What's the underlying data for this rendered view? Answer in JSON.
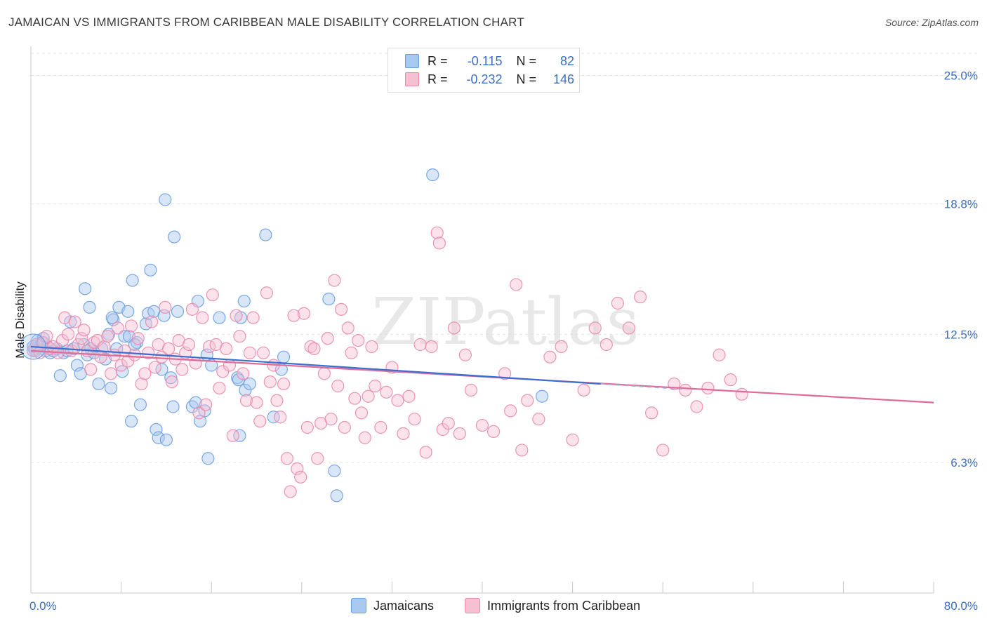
{
  "title": "JAMAICAN VS IMMIGRANTS FROM CARIBBEAN MALE DISABILITY CORRELATION CHART",
  "source": "Source: ZipAtlas.com",
  "watermark": "ZIPatlas",
  "legend": {
    "rows": [
      {
        "r_label": "R =",
        "r_value": "-0.115",
        "n_label": "N =",
        "n_value": "82",
        "color": "#a9c8f0",
        "border": "#6c9fe0"
      },
      {
        "r_label": "R =",
        "r_value": "-0.232",
        "n_label": "N =",
        "n_value": "146",
        "color": "#f7bfd2",
        "border": "#e88aad"
      }
    ]
  },
  "bottom_legend": [
    {
      "label": "Jamaicans",
      "color": "#a9c8f0",
      "border": "#6c9fe0"
    },
    {
      "label": "Immigrants from Caribbean",
      "color": "#f7bfd2",
      "border": "#e88aad"
    }
  ],
  "chart_data": {
    "type": "scatter",
    "xlabel": "",
    "ylabel": "Male Disability",
    "xlim": [
      0,
      80
    ],
    "ylim": [
      0,
      26
    ],
    "x_tick_labels": [
      "0.0%",
      "80.0%"
    ],
    "y_tick_labels": [
      "6.3%",
      "12.5%",
      "18.8%",
      "25.0%"
    ],
    "y_ticks": [
      6.3,
      12.5,
      18.8,
      25.0
    ],
    "grid": true,
    "series": [
      {
        "name": "Jamaicans",
        "color": "#6c9fe0",
        "fill": "#a9c8f0",
        "trend": {
          "x": [
            0,
            50.5
          ],
          "y": [
            11.9,
            10.1
          ]
        },
        "points": [
          [
            0.3,
            11.8
          ],
          [
            0.6,
            12.2
          ],
          [
            0.9,
            12.0
          ],
          [
            1.1,
            12.3
          ],
          [
            1.3,
            11.7
          ],
          [
            1.5,
            11.9
          ],
          [
            1.7,
            11.6
          ],
          [
            2.0,
            11.7
          ],
          [
            2.3,
            11.8
          ],
          [
            2.6,
            10.5
          ],
          [
            2.9,
            11.6
          ],
          [
            3.2,
            11.7
          ],
          [
            3.5,
            13.1
          ],
          [
            3.8,
            11.8
          ],
          [
            4.1,
            11.0
          ],
          [
            4.4,
            10.6
          ],
          [
            4.7,
            12.0
          ],
          [
            5.0,
            11.5
          ],
          [
            5.3,
            11.8
          ],
          [
            4.8,
            14.7
          ],
          [
            5.2,
            13.8
          ],
          [
            5.6,
            11.6
          ],
          [
            6.0,
            10.1
          ],
          [
            6.3,
            11.8
          ],
          [
            6.6,
            11.3
          ],
          [
            6.9,
            12.5
          ],
          [
            7.1,
            9.9
          ],
          [
            7.3,
            13.2
          ],
          [
            7.6,
            11.8
          ],
          [
            7.2,
            13.3
          ],
          [
            7.8,
            13.8
          ],
          [
            8.1,
            10.7
          ],
          [
            8.3,
            12.4
          ],
          [
            8.6,
            13.6
          ],
          [
            8.9,
            8.3
          ],
          [
            8.7,
            12.4
          ],
          [
            9.0,
            15.1
          ],
          [
            9.4,
            12.1
          ],
          [
            9.2,
            12.0
          ],
          [
            9.7,
            9.1
          ],
          [
            10.2,
            13.0
          ],
          [
            10.4,
            13.5
          ],
          [
            10.6,
            15.6
          ],
          [
            10.9,
            13.6
          ],
          [
            11.1,
            7.9
          ],
          [
            11.3,
            7.5
          ],
          [
            11.6,
            10.8
          ],
          [
            11.8,
            13.4
          ],
          [
            12.0,
            7.4
          ],
          [
            11.9,
            19.0
          ],
          [
            12.4,
            10.4
          ],
          [
            12.6,
            9.0
          ],
          [
            12.7,
            17.2
          ],
          [
            13.0,
            13.6
          ],
          [
            14.3,
            9.0
          ],
          [
            14.6,
            9.2
          ],
          [
            14.8,
            14.1
          ],
          [
            15.0,
            8.3
          ],
          [
            15.4,
            8.8
          ],
          [
            15.6,
            11.5
          ],
          [
            15.7,
            6.5
          ],
          [
            16.7,
            13.3
          ],
          [
            18.3,
            10.4
          ],
          [
            18.6,
            13.3
          ],
          [
            18.9,
            14.1
          ],
          [
            18.4,
            10.3
          ],
          [
            19.0,
            9.8
          ],
          [
            19.4,
            10.1
          ],
          [
            18.5,
            7.6
          ],
          [
            20.8,
            17.3
          ],
          [
            21.5,
            8.5
          ],
          [
            22.2,
            10.8
          ],
          [
            22.4,
            11.4
          ],
          [
            26.4,
            14.2
          ],
          [
            26.9,
            5.9
          ],
          [
            27.1,
            4.7
          ],
          [
            35.6,
            20.2
          ],
          [
            45.3,
            9.5
          ],
          [
            0.2,
            11.9
          ],
          [
            0.4,
            11.7
          ],
          [
            1.0,
            12.1
          ],
          [
            16.0,
            11.0
          ]
        ]
      },
      {
        "name": "Immigrants from Caribbean",
        "color": "#e88aad",
        "fill": "#f7bfd2",
        "trend": {
          "x": [
            0,
            80
          ],
          "y": [
            11.7,
            9.2
          ]
        },
        "points": [
          [
            0.2,
            11.7
          ],
          [
            0.5,
            12.0
          ],
          [
            0.8,
            11.6
          ],
          [
            1.1,
            12.1
          ],
          [
            1.4,
            12.4
          ],
          [
            1.7,
            11.8
          ],
          [
            2.0,
            11.9
          ],
          [
            2.4,
            11.6
          ],
          [
            2.8,
            12.2
          ],
          [
            3.0,
            13.3
          ],
          [
            3.3,
            12.5
          ],
          [
            3.6,
            11.7
          ],
          [
            3.9,
            13.1
          ],
          [
            4.2,
            12.0
          ],
          [
            4.5,
            12.3
          ],
          [
            4.7,
            12.7
          ],
          [
            5.0,
            11.7
          ],
          [
            5.3,
            10.8
          ],
          [
            5.6,
            12.1
          ],
          [
            5.9,
            12.2
          ],
          [
            6.2,
            11.4
          ],
          [
            6.5,
            11.9
          ],
          [
            6.8,
            12.4
          ],
          [
            7.1,
            10.6
          ],
          [
            7.4,
            11.5
          ],
          [
            7.7,
            12.8
          ],
          [
            8.0,
            11.0
          ],
          [
            8.3,
            11.7
          ],
          [
            8.6,
            11.2
          ],
          [
            8.9,
            12.9
          ],
          [
            9.2,
            11.5
          ],
          [
            9.5,
            12.3
          ],
          [
            9.8,
            10.1
          ],
          [
            10.1,
            10.6
          ],
          [
            10.4,
            11.6
          ],
          [
            10.7,
            13.1
          ],
          [
            11.0,
            10.9
          ],
          [
            11.3,
            12.0
          ],
          [
            11.6,
            11.4
          ],
          [
            11.9,
            13.8
          ],
          [
            12.2,
            11.8
          ],
          [
            12.5,
            10.2
          ],
          [
            12.8,
            11.3
          ],
          [
            13.1,
            12.2
          ],
          [
            13.4,
            10.8
          ],
          [
            13.7,
            11.6
          ],
          [
            14.0,
            12.0
          ],
          [
            14.3,
            13.7
          ],
          [
            14.6,
            11.1
          ],
          [
            14.9,
            8.7
          ],
          [
            15.2,
            13.3
          ],
          [
            15.5,
            9.1
          ],
          [
            15.8,
            11.9
          ],
          [
            16.1,
            14.4
          ],
          [
            16.4,
            12.0
          ],
          [
            16.7,
            9.9
          ],
          [
            17.0,
            10.7
          ],
          [
            17.3,
            11.8
          ],
          [
            17.6,
            11.0
          ],
          [
            17.9,
            7.6
          ],
          [
            18.2,
            13.4
          ],
          [
            18.5,
            12.4
          ],
          [
            18.8,
            10.6
          ],
          [
            19.1,
            9.3
          ],
          [
            19.4,
            11.6
          ],
          [
            19.7,
            13.3
          ],
          [
            20.0,
            9.2
          ],
          [
            20.3,
            8.3
          ],
          [
            20.6,
            11.6
          ],
          [
            20.9,
            14.5
          ],
          [
            21.2,
            10.2
          ],
          [
            21.5,
            11.0
          ],
          [
            21.8,
            9.3
          ],
          [
            22.1,
            8.5
          ],
          [
            22.4,
            10.1
          ],
          [
            22.7,
            6.5
          ],
          [
            23.0,
            4.9
          ],
          [
            23.3,
            13.4
          ],
          [
            23.6,
            6.0
          ],
          [
            23.9,
            5.6
          ],
          [
            24.2,
            13.5
          ],
          [
            24.5,
            8.0
          ],
          [
            24.8,
            11.9
          ],
          [
            25.1,
            11.8
          ],
          [
            25.4,
            6.5
          ],
          [
            25.7,
            8.2
          ],
          [
            26.0,
            10.6
          ],
          [
            26.3,
            12.3
          ],
          [
            26.6,
            8.4
          ],
          [
            26.9,
            15.1
          ],
          [
            27.2,
            10.0
          ],
          [
            27.5,
            13.7
          ],
          [
            27.8,
            8.0
          ],
          [
            28.1,
            12.8
          ],
          [
            28.4,
            11.6
          ],
          [
            28.7,
            9.4
          ],
          [
            29.0,
            12.2
          ],
          [
            29.3,
            8.7
          ],
          [
            29.6,
            7.5
          ],
          [
            29.9,
            9.5
          ],
          [
            30.2,
            11.9
          ],
          [
            30.5,
            10.0
          ],
          [
            31.0,
            8.0
          ],
          [
            31.5,
            9.7
          ],
          [
            32.0,
            10.9
          ],
          [
            32.5,
            9.3
          ],
          [
            33.0,
            7.7
          ],
          [
            33.5,
            9.5
          ],
          [
            34.0,
            8.4
          ],
          [
            34.5,
            12.0
          ],
          [
            35.0,
            6.8
          ],
          [
            35.5,
            11.9
          ],
          [
            36.0,
            17.4
          ],
          [
            36.2,
            16.9
          ],
          [
            36.5,
            7.9
          ],
          [
            37.0,
            8.2
          ],
          [
            37.5,
            12.8
          ],
          [
            38.0,
            7.7
          ],
          [
            38.5,
            11.5
          ],
          [
            39.0,
            9.8
          ],
          [
            40.0,
            8.1
          ],
          [
            41.0,
            7.8
          ],
          [
            42.0,
            10.6
          ],
          [
            42.5,
            8.8
          ],
          [
            43.0,
            14.9
          ],
          [
            43.5,
            6.9
          ],
          [
            44.0,
            9.3
          ],
          [
            45.0,
            8.4
          ],
          [
            46.0,
            11.4
          ],
          [
            47.0,
            11.9
          ],
          [
            48.0,
            7.4
          ],
          [
            49.0,
            9.8
          ],
          [
            50.0,
            12.8
          ],
          [
            51.0,
            12.0
          ],
          [
            52.0,
            14.0
          ],
          [
            53.0,
            12.8
          ],
          [
            54.0,
            14.3
          ],
          [
            55.0,
            8.7
          ],
          [
            56.0,
            6.9
          ],
          [
            57.0,
            10.1
          ],
          [
            58.0,
            9.8
          ],
          [
            59.0,
            9.0
          ],
          [
            60.0,
            9.9
          ],
          [
            61.0,
            11.5
          ],
          [
            62.0,
            10.3
          ],
          [
            63.0,
            9.6
          ]
        ]
      }
    ]
  }
}
